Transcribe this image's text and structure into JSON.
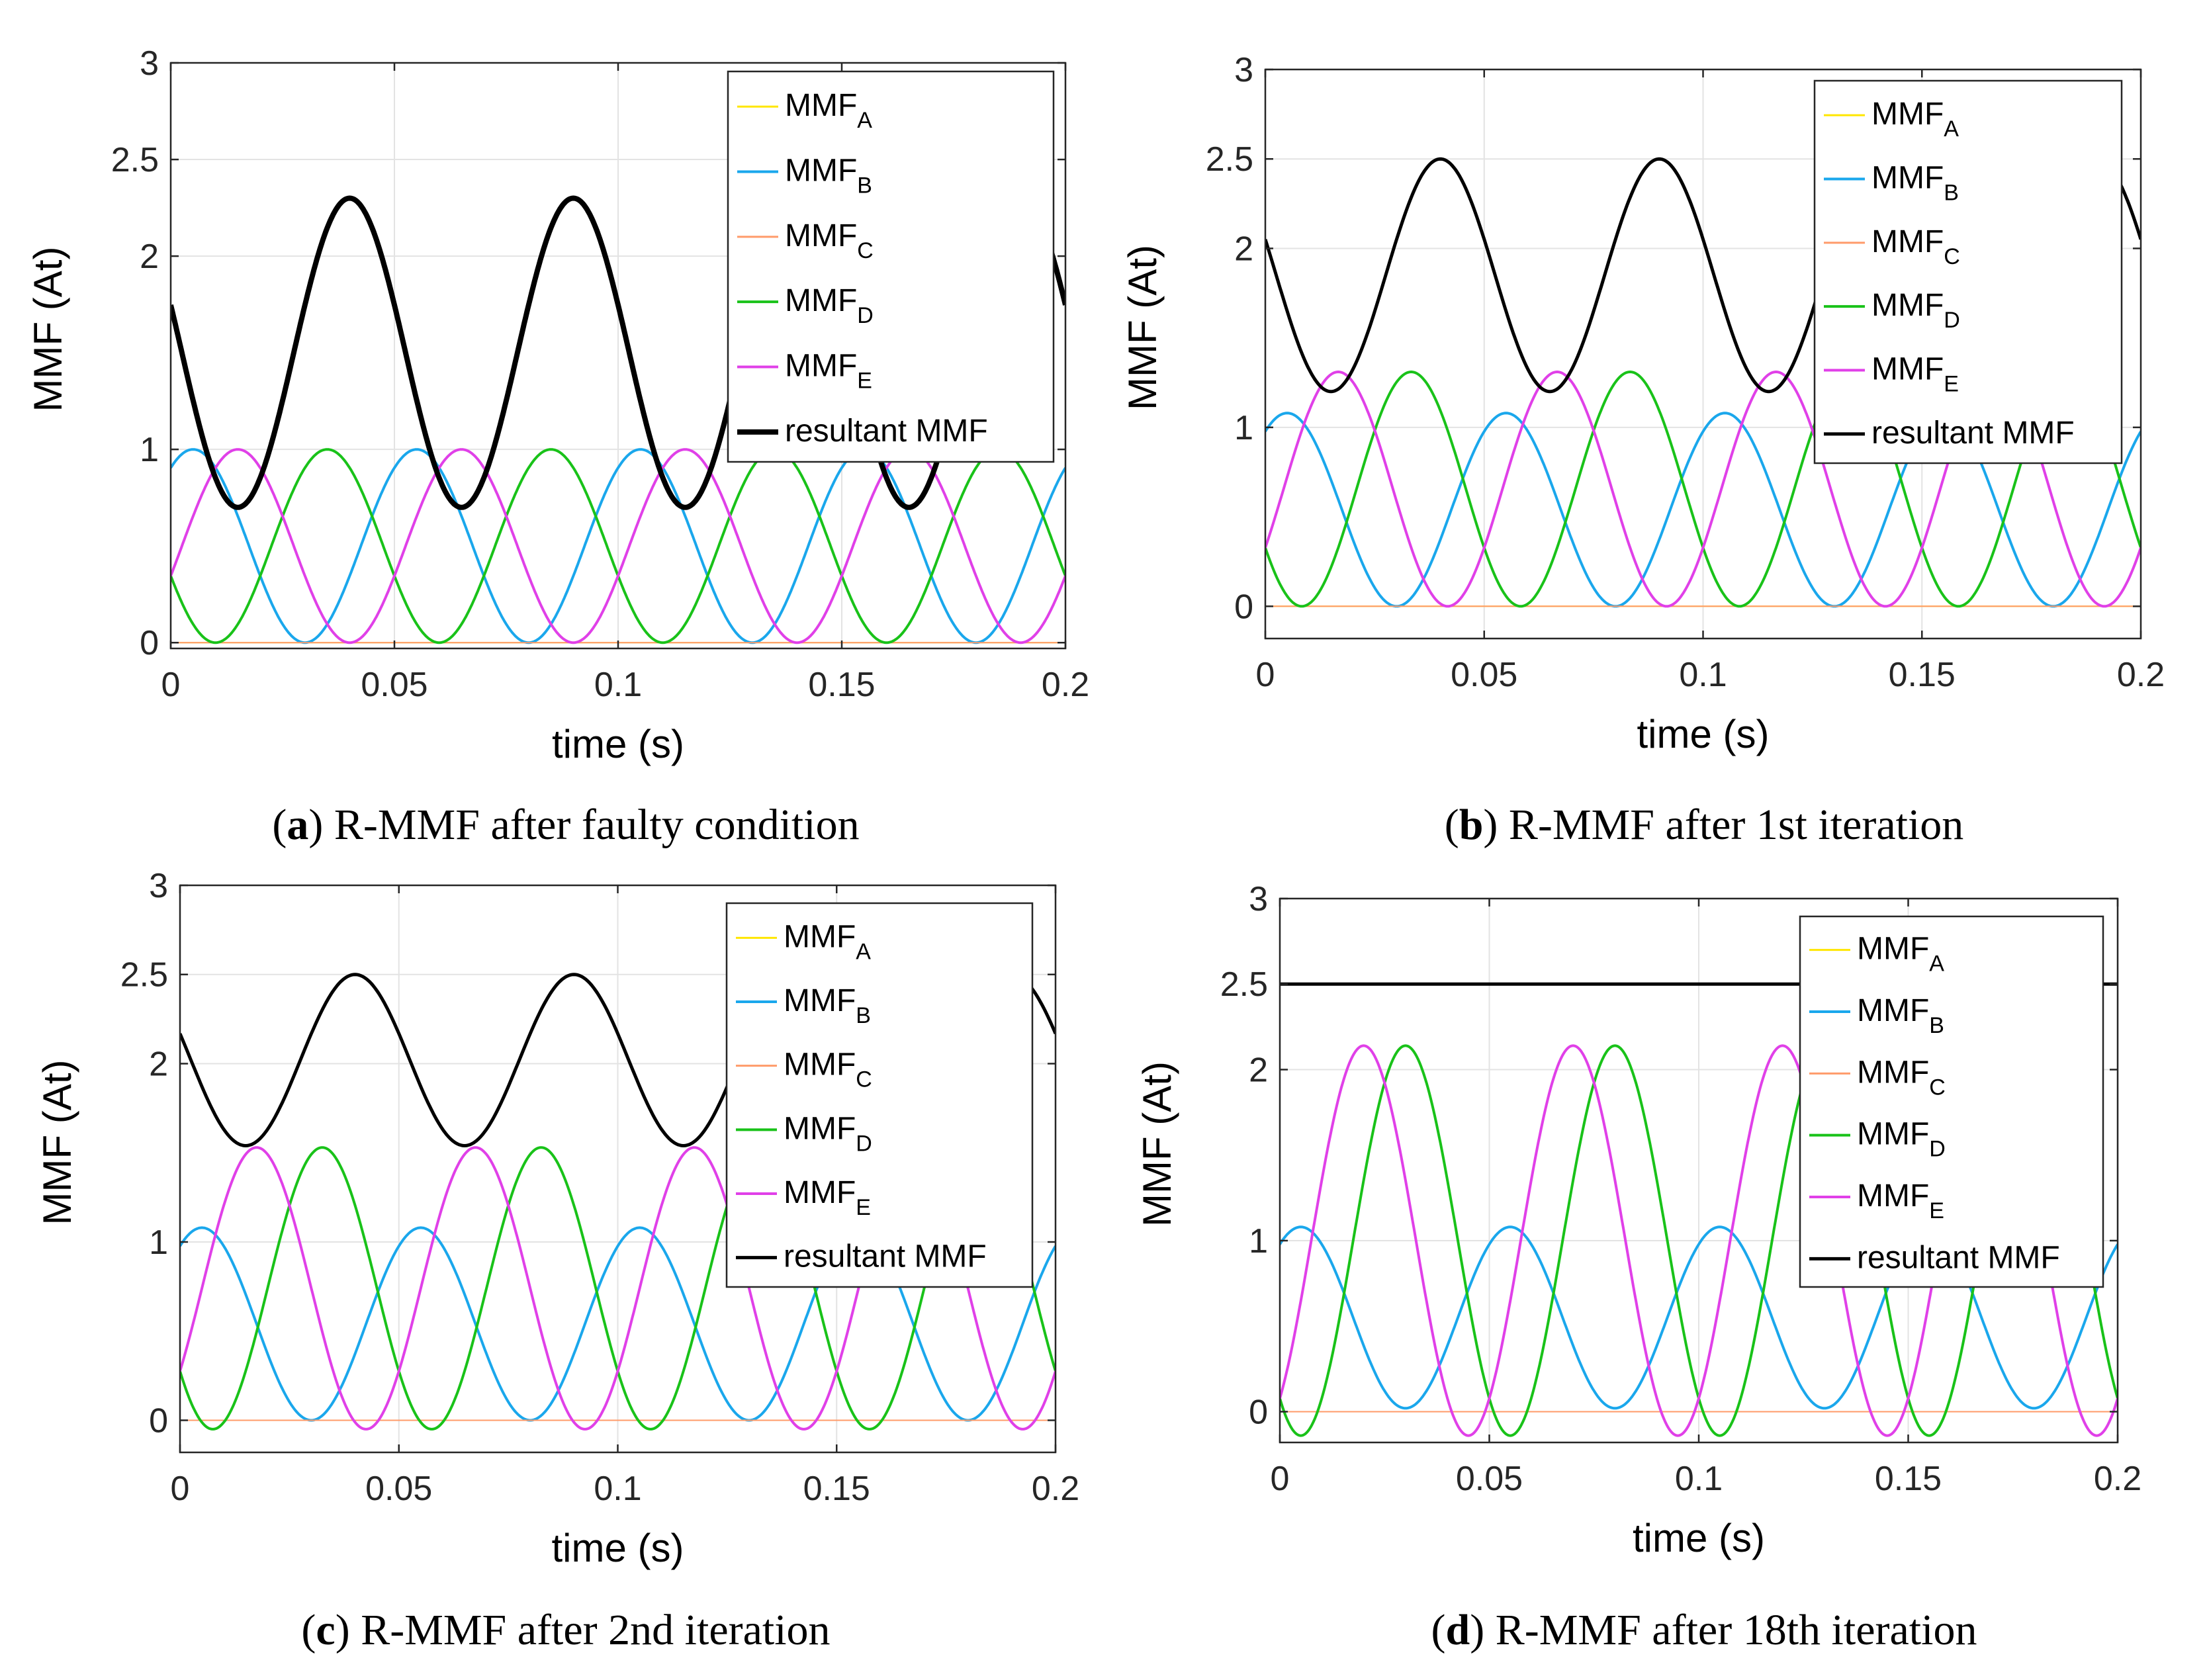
{
  "figure": {
    "panels": [
      {
        "letter": "a",
        "caption": "R-MMF after faulty condition"
      },
      {
        "letter": "b",
        "caption": "R-MMF after 1st iteration"
      },
      {
        "letter": "c",
        "caption": "R-MMF after 2nd iteration"
      },
      {
        "letter": "d",
        "caption": "R-MMF after 18th iteration"
      }
    ]
  },
  "chart_data": [
    {
      "type": "line",
      "title": "",
      "xlabel": "time (s)",
      "ylabel": "MMF (At)",
      "xlim": [
        0,
        0.2
      ],
      "ylim": [
        -0.03,
        3
      ],
      "xticks": [
        "0",
        "0.05",
        "0.1",
        "0.15",
        "0.2"
      ],
      "xtick_values": [
        0,
        0.05,
        0.1,
        0.15,
        0.2
      ],
      "yticks": [
        "0",
        "1",
        "2",
        "2.5",
        "3"
      ],
      "ytick_values": [
        0,
        1,
        2,
        2.5,
        3
      ],
      "grid": true,
      "legend_position": "top-right",
      "frequency_hz": 20,
      "series": [
        {
          "name": "MMF",
          "sub": "A",
          "color": "#ffe600",
          "func": "zero",
          "amplitude": 0,
          "offset": 0,
          "phase_deg": 0,
          "width": 2
        },
        {
          "name": "MMF",
          "sub": "B",
          "color": "#1aa7ec",
          "func": "cosine",
          "amplitude": 0.5,
          "offset": 0.5,
          "phase_deg": -36,
          "width": 4
        },
        {
          "name": "MMF",
          "sub": "C",
          "color": "#ff9b6a",
          "func": "zero",
          "amplitude": 0,
          "offset": 0,
          "phase_deg": 0,
          "width": 2
        },
        {
          "name": "MMF",
          "sub": "D",
          "color": "#19c219",
          "func": "cosine",
          "amplitude": 0.5,
          "offset": 0.5,
          "phase_deg": 108,
          "width": 4
        },
        {
          "name": "MMF",
          "sub": "E",
          "color": "#e040e8",
          "func": "cosine",
          "amplitude": 0.5,
          "offset": 0.5,
          "phase_deg": -108,
          "width": 4
        },
        {
          "name": "resultant MMF",
          "sub": "",
          "color": "#000000",
          "func": "cosine",
          "amplitude": 0.8,
          "offset": 1.5,
          "phase_deg": 72,
          "width": 8
        }
      ]
    },
    {
      "type": "line",
      "title": "",
      "xlabel": "time (s)",
      "ylabel": "MMF (At)",
      "xlim": [
        0,
        0.2
      ],
      "ylim": [
        -0.18,
        3
      ],
      "xticks": [
        "0",
        "0.05",
        "0.1",
        "0.15",
        "0.2"
      ],
      "xtick_values": [
        0,
        0.05,
        0.1,
        0.15,
        0.2
      ],
      "yticks": [
        "0",
        "1",
        "2",
        "2.5",
        "3"
      ],
      "ytick_values": [
        0,
        1,
        2,
        2.5,
        3
      ],
      "grid": true,
      "legend_position": "top-right",
      "frequency_hz": 20,
      "series": [
        {
          "name": "MMF",
          "sub": "A",
          "color": "#ffe600",
          "func": "zero",
          "amplitude": 0,
          "offset": 0,
          "phase_deg": 0,
          "width": 2
        },
        {
          "name": "MMF",
          "sub": "B",
          "color": "#1aa7ec",
          "func": "cosine",
          "amplitude": 0.54,
          "offset": 0.54,
          "phase_deg": -36,
          "width": 4
        },
        {
          "name": "MMF",
          "sub": "C",
          "color": "#ff9b6a",
          "func": "zero",
          "amplitude": 0,
          "offset": 0,
          "phase_deg": 0,
          "width": 2
        },
        {
          "name": "MMF",
          "sub": "D",
          "color": "#19c219",
          "func": "cosine",
          "amplitude": 0.655,
          "offset": 0.655,
          "phase_deg": 120,
          "width": 4
        },
        {
          "name": "MMF",
          "sub": "E",
          "color": "#e040e8",
          "func": "cosine",
          "amplitude": 0.655,
          "offset": 0.655,
          "phase_deg": -120,
          "width": 4
        },
        {
          "name": "resultant MMF",
          "sub": "",
          "color": "#000000",
          "func": "cosine",
          "amplitude": 0.65,
          "offset": 1.85,
          "phase_deg": 72,
          "width": 5
        }
      ]
    },
    {
      "type": "line",
      "title": "",
      "xlabel": "time (s)",
      "ylabel": "MMF (At)",
      "xlim": [
        0,
        0.2
      ],
      "ylim": [
        -0.18,
        3
      ],
      "xticks": [
        "0",
        "0.05",
        "0.1",
        "0.15",
        "0.2"
      ],
      "xtick_values": [
        0,
        0.05,
        0.1,
        0.15,
        0.2
      ],
      "yticks": [
        "0",
        "1",
        "2",
        "2.5",
        "3"
      ],
      "ytick_values": [
        0,
        1,
        2,
        2.5,
        3
      ],
      "grid": true,
      "legend_position": "top-right",
      "frequency_hz": 20,
      "series": [
        {
          "name": "MMF",
          "sub": "A",
          "color": "#ffe600",
          "func": "zero",
          "amplitude": 0,
          "offset": 0,
          "phase_deg": 0,
          "width": 2
        },
        {
          "name": "MMF",
          "sub": "B",
          "color": "#1aa7ec",
          "func": "cosine",
          "amplitude": 0.54,
          "offset": 0.54,
          "phase_deg": -36,
          "width": 4
        },
        {
          "name": "MMF",
          "sub": "C",
          "color": "#ff9b6a",
          "func": "zero",
          "amplitude": 0,
          "offset": 0,
          "phase_deg": 0,
          "width": 2
        },
        {
          "name": "MMF",
          "sub": "D",
          "color": "#19c219",
          "func": "cosine",
          "amplitude": 0.79,
          "offset": 0.74,
          "phase_deg": 126,
          "width": 4
        },
        {
          "name": "MMF",
          "sub": "E",
          "color": "#e040e8",
          "func": "cosine",
          "amplitude": 0.79,
          "offset": 0.74,
          "phase_deg": -126,
          "width": 4
        },
        {
          "name": "resultant MMF",
          "sub": "",
          "color": "#000000",
          "func": "cosine",
          "amplitude": 0.48,
          "offset": 2.02,
          "phase_deg": 72,
          "width": 5
        }
      ]
    },
    {
      "type": "line",
      "title": "",
      "xlabel": "time (s)",
      "ylabel": "MMF (At)",
      "xlim": [
        0,
        0.2
      ],
      "ylim": [
        -0.18,
        3
      ],
      "xticks": [
        "0",
        "0.05",
        "0.1",
        "0.15",
        "0.2"
      ],
      "xtick_values": [
        0,
        0.05,
        0.1,
        0.15,
        0.2
      ],
      "yticks": [
        "0",
        "1",
        "2",
        "2.5",
        "3"
      ],
      "ytick_values": [
        0,
        1,
        2,
        2.5,
        3
      ],
      "grid": true,
      "legend_position": "top-right",
      "frequency_hz": 20,
      "series": [
        {
          "name": "MMF",
          "sub": "A",
          "color": "#ffe600",
          "func": "zero",
          "amplitude": 0,
          "offset": 0,
          "phase_deg": 0,
          "width": 2
        },
        {
          "name": "MMF",
          "sub": "B",
          "color": "#1aa7ec",
          "func": "cosine",
          "amplitude": 0.53,
          "offset": 0.55,
          "phase_deg": -36,
          "width": 4
        },
        {
          "name": "MMF",
          "sub": "C",
          "color": "#ff9b6a",
          "func": "zero",
          "amplitude": 0,
          "offset": 0,
          "phase_deg": 0,
          "width": 2
        },
        {
          "name": "MMF",
          "sub": "D",
          "color": "#19c219",
          "func": "cosine",
          "amplitude": 1.14,
          "offset": 1.0,
          "phase_deg": 144,
          "width": 4
        },
        {
          "name": "MMF",
          "sub": "E",
          "color": "#e040e8",
          "func": "cosine",
          "amplitude": 1.14,
          "offset": 1.0,
          "phase_deg": -144,
          "width": 4
        },
        {
          "name": "resultant MMF",
          "sub": "",
          "color": "#000000",
          "func": "constant",
          "amplitude": 0,
          "offset": 2.5,
          "phase_deg": 0,
          "width": 5
        }
      ]
    }
  ]
}
